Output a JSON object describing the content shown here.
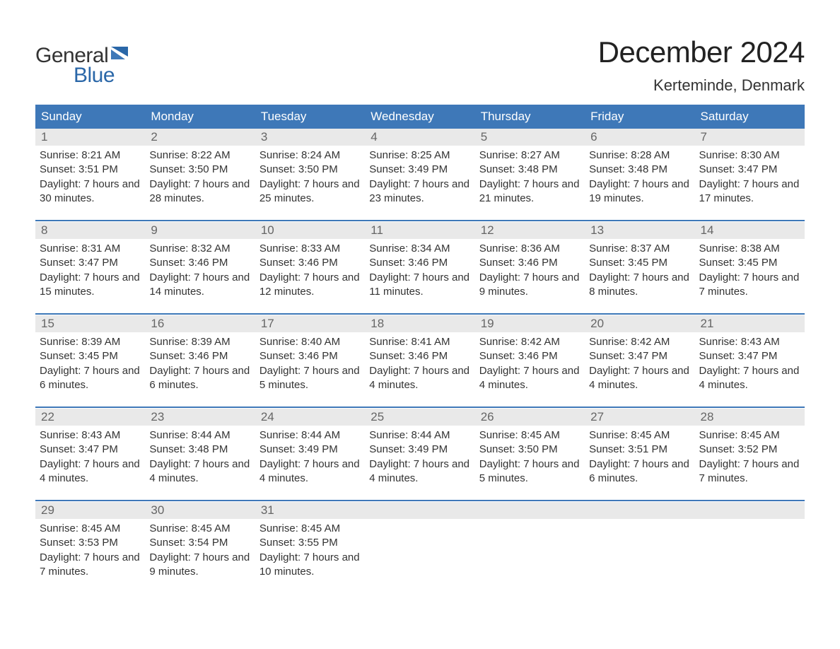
{
  "logo": {
    "text1": "General",
    "text2": "Blue"
  },
  "title": "December 2024",
  "location": "Kerteminde, Denmark",
  "colors": {
    "header_bg": "#3e78b8",
    "header_text": "#ffffff",
    "daynum_bg": "#e9e9e9",
    "daynum_text": "#666666",
    "body_text": "#333333",
    "accent": "#2a67a8",
    "page_bg": "#ffffff"
  },
  "typography": {
    "title_fontsize": 42,
    "location_fontsize": 22,
    "header_fontsize": 17,
    "daynum_fontsize": 17,
    "cell_fontsize": 15
  },
  "days_of_week": [
    "Sunday",
    "Monday",
    "Tuesday",
    "Wednesday",
    "Thursday",
    "Friday",
    "Saturday"
  ],
  "weeks": [
    [
      {
        "n": "1",
        "sunrise": "Sunrise: 8:21 AM",
        "sunset": "Sunset: 3:51 PM",
        "daylight": "Daylight: 7 hours and 30 minutes."
      },
      {
        "n": "2",
        "sunrise": "Sunrise: 8:22 AM",
        "sunset": "Sunset: 3:50 PM",
        "daylight": "Daylight: 7 hours and 28 minutes."
      },
      {
        "n": "3",
        "sunrise": "Sunrise: 8:24 AM",
        "sunset": "Sunset: 3:50 PM",
        "daylight": "Daylight: 7 hours and 25 minutes."
      },
      {
        "n": "4",
        "sunrise": "Sunrise: 8:25 AM",
        "sunset": "Sunset: 3:49 PM",
        "daylight": "Daylight: 7 hours and 23 minutes."
      },
      {
        "n": "5",
        "sunrise": "Sunrise: 8:27 AM",
        "sunset": "Sunset: 3:48 PM",
        "daylight": "Daylight: 7 hours and 21 minutes."
      },
      {
        "n": "6",
        "sunrise": "Sunrise: 8:28 AM",
        "sunset": "Sunset: 3:48 PM",
        "daylight": "Daylight: 7 hours and 19 minutes."
      },
      {
        "n": "7",
        "sunrise": "Sunrise: 8:30 AM",
        "sunset": "Sunset: 3:47 PM",
        "daylight": "Daylight: 7 hours and 17 minutes."
      }
    ],
    [
      {
        "n": "8",
        "sunrise": "Sunrise: 8:31 AM",
        "sunset": "Sunset: 3:47 PM",
        "daylight": "Daylight: 7 hours and 15 minutes."
      },
      {
        "n": "9",
        "sunrise": "Sunrise: 8:32 AM",
        "sunset": "Sunset: 3:46 PM",
        "daylight": "Daylight: 7 hours and 14 minutes."
      },
      {
        "n": "10",
        "sunrise": "Sunrise: 8:33 AM",
        "sunset": "Sunset: 3:46 PM",
        "daylight": "Daylight: 7 hours and 12 minutes."
      },
      {
        "n": "11",
        "sunrise": "Sunrise: 8:34 AM",
        "sunset": "Sunset: 3:46 PM",
        "daylight": "Daylight: 7 hours and 11 minutes."
      },
      {
        "n": "12",
        "sunrise": "Sunrise: 8:36 AM",
        "sunset": "Sunset: 3:46 PM",
        "daylight": "Daylight: 7 hours and 9 minutes."
      },
      {
        "n": "13",
        "sunrise": "Sunrise: 8:37 AM",
        "sunset": "Sunset: 3:45 PM",
        "daylight": "Daylight: 7 hours and 8 minutes."
      },
      {
        "n": "14",
        "sunrise": "Sunrise: 8:38 AM",
        "sunset": "Sunset: 3:45 PM",
        "daylight": "Daylight: 7 hours and 7 minutes."
      }
    ],
    [
      {
        "n": "15",
        "sunrise": "Sunrise: 8:39 AM",
        "sunset": "Sunset: 3:45 PM",
        "daylight": "Daylight: 7 hours and 6 minutes."
      },
      {
        "n": "16",
        "sunrise": "Sunrise: 8:39 AM",
        "sunset": "Sunset: 3:46 PM",
        "daylight": "Daylight: 7 hours and 6 minutes."
      },
      {
        "n": "17",
        "sunrise": "Sunrise: 8:40 AM",
        "sunset": "Sunset: 3:46 PM",
        "daylight": "Daylight: 7 hours and 5 minutes."
      },
      {
        "n": "18",
        "sunrise": "Sunrise: 8:41 AM",
        "sunset": "Sunset: 3:46 PM",
        "daylight": "Daylight: 7 hours and 4 minutes."
      },
      {
        "n": "19",
        "sunrise": "Sunrise: 8:42 AM",
        "sunset": "Sunset: 3:46 PM",
        "daylight": "Daylight: 7 hours and 4 minutes."
      },
      {
        "n": "20",
        "sunrise": "Sunrise: 8:42 AM",
        "sunset": "Sunset: 3:47 PM",
        "daylight": "Daylight: 7 hours and 4 minutes."
      },
      {
        "n": "21",
        "sunrise": "Sunrise: 8:43 AM",
        "sunset": "Sunset: 3:47 PM",
        "daylight": "Daylight: 7 hours and 4 minutes."
      }
    ],
    [
      {
        "n": "22",
        "sunrise": "Sunrise: 8:43 AM",
        "sunset": "Sunset: 3:47 PM",
        "daylight": "Daylight: 7 hours and 4 minutes."
      },
      {
        "n": "23",
        "sunrise": "Sunrise: 8:44 AM",
        "sunset": "Sunset: 3:48 PM",
        "daylight": "Daylight: 7 hours and 4 minutes."
      },
      {
        "n": "24",
        "sunrise": "Sunrise: 8:44 AM",
        "sunset": "Sunset: 3:49 PM",
        "daylight": "Daylight: 7 hours and 4 minutes."
      },
      {
        "n": "25",
        "sunrise": "Sunrise: 8:44 AM",
        "sunset": "Sunset: 3:49 PM",
        "daylight": "Daylight: 7 hours and 4 minutes."
      },
      {
        "n": "26",
        "sunrise": "Sunrise: 8:45 AM",
        "sunset": "Sunset: 3:50 PM",
        "daylight": "Daylight: 7 hours and 5 minutes."
      },
      {
        "n": "27",
        "sunrise": "Sunrise: 8:45 AM",
        "sunset": "Sunset: 3:51 PM",
        "daylight": "Daylight: 7 hours and 6 minutes."
      },
      {
        "n": "28",
        "sunrise": "Sunrise: 8:45 AM",
        "sunset": "Sunset: 3:52 PM",
        "daylight": "Daylight: 7 hours and 7 minutes."
      }
    ],
    [
      {
        "n": "29",
        "sunrise": "Sunrise: 8:45 AM",
        "sunset": "Sunset: 3:53 PM",
        "daylight": "Daylight: 7 hours and 7 minutes."
      },
      {
        "n": "30",
        "sunrise": "Sunrise: 8:45 AM",
        "sunset": "Sunset: 3:54 PM",
        "daylight": "Daylight: 7 hours and 9 minutes."
      },
      {
        "n": "31",
        "sunrise": "Sunrise: 8:45 AM",
        "sunset": "Sunset: 3:55 PM",
        "daylight": "Daylight: 7 hours and 10 minutes."
      },
      null,
      null,
      null,
      null
    ]
  ]
}
